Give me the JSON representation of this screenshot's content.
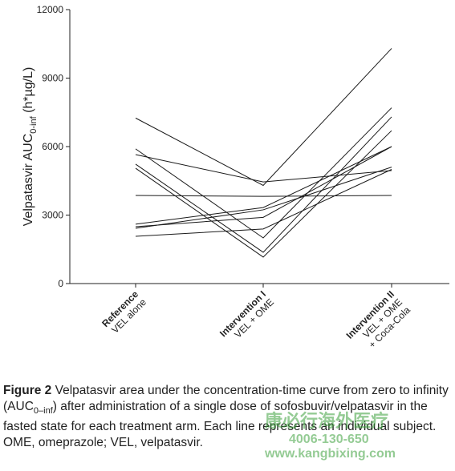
{
  "chart_data": {
    "type": "line",
    "y_label": {
      "main": "Velpatasvir AUC",
      "sub": "0-inf",
      "unit": " (h*µg/L)"
    },
    "categories": [
      "Reference",
      "Intervention I",
      "Intervention II"
    ],
    "category_notes": [
      [
        "VEL alone"
      ],
      [
        "VEL + OME"
      ],
      [
        "VEL + OME",
        "+ Coca-Cola"
      ]
    ],
    "ylim": [
      0,
      12000
    ],
    "yticks": [
      0,
      3000,
      6000,
      9000,
      12000
    ],
    "color": "#1a1a1a",
    "series": [
      {
        "values": [
          7250,
          4300,
          10300
        ]
      },
      {
        "values": [
          5900,
          2000,
          7700
        ]
      },
      {
        "values": [
          5650,
          4450,
          4950
        ]
      },
      {
        "values": [
          5230,
          1370,
          7300
        ]
      },
      {
        "values": [
          5050,
          1160,
          6700
        ]
      },
      {
        "values": [
          3860,
          3820,
          3860
        ]
      },
      {
        "values": [
          2600,
          3330,
          6000
        ]
      },
      {
        "values": [
          2490,
          2900,
          6000
        ]
      },
      {
        "values": [
          2420,
          3230,
          5100
        ]
      },
      {
        "values": [
          2070,
          2390,
          5000
        ]
      }
    ]
  },
  "caption": {
    "label": "Figure 2",
    "text_before": " Velpatasvir area under the concentration-time curve from zero to infinity (AUC",
    "sub": "0–inf",
    "text_after": ") after administration of a single dose of sofosbuvir/velpatasvir in the fasted state for each treatment arm. Each line represents an individual subject. OME, omeprazole; VEL, velpatasvir."
  },
  "watermark": {
    "name": "康必行海外医疗",
    "phone": "4006-130-650",
    "url": "www.kangbixing.com"
  }
}
